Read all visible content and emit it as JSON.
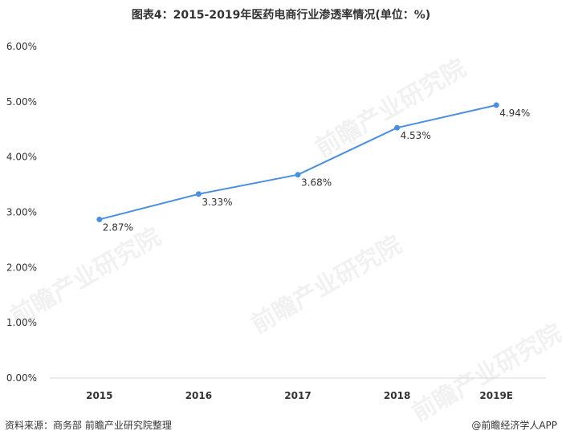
{
  "page": {
    "title": "图表4：2015-2019年医药电商行业渗透率情况(单位：%)",
    "source": "资料来源：商务部 前瞻产业研究院整理",
    "brand": "@前瞻经济学人APP",
    "watermark": "前瞻产业研究院"
  },
  "colors": {
    "line": "#4a8fe0",
    "axis": "#d9d9d9",
    "text": "#333333"
  },
  "chart_data": {
    "type": "line",
    "title": "图表4：2015-2019年医药电商行业渗透率情况(单位：%)",
    "xlabel": "",
    "ylabel": "",
    "categories": [
      "2015",
      "2016",
      "2017",
      "2018",
      "2019E"
    ],
    "series": [
      {
        "values": [
          2.87,
          3.33,
          3.68,
          4.53,
          4.94
        ],
        "labels": [
          "2.87%",
          "3.33%",
          "3.68%",
          "4.53%",
          "4.94%"
        ]
      }
    ],
    "ylim": [
      0,
      6
    ],
    "yticks": [
      0,
      1,
      2,
      3,
      4,
      5,
      6
    ],
    "ytick_labels": [
      "0.00%",
      "1.00%",
      "2.00%",
      "3.00%",
      "4.00%",
      "5.00%",
      "6.00%"
    ],
    "grid": false,
    "legend": "none"
  }
}
